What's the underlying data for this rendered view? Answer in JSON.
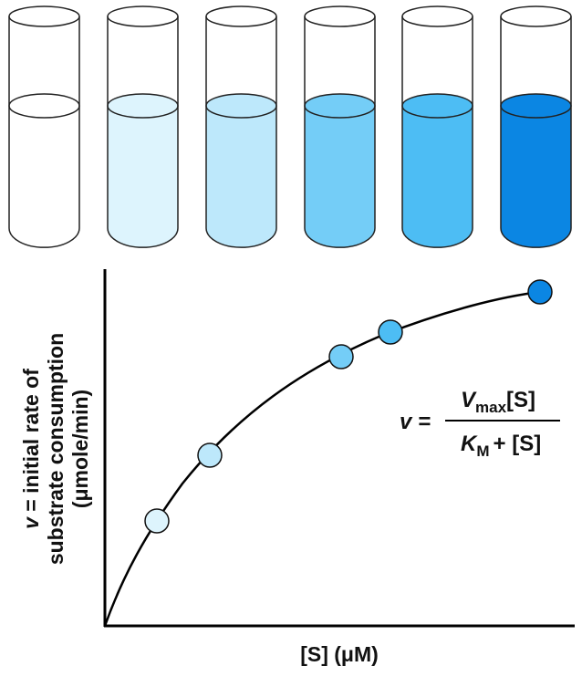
{
  "tubes": [
    {
      "color": "#ffffff"
    },
    {
      "color": "#ddf4fd"
    },
    {
      "color": "#bde8fb"
    },
    {
      "color": "#74cdf7"
    },
    {
      "color": "#4dbdf4"
    },
    {
      "color": "#0b86e3"
    }
  ],
  "graph": {
    "y_label": {
      "variable": "v",
      "lines": [
        "= initial rate of",
        "substrate consumption",
        "(μmole/min)"
      ]
    },
    "x_label": "[S] (μM)",
    "equation": {
      "lhs": "v =",
      "numerator": {
        "symbol": "V",
        "subscript": "max",
        "rest": "[S]"
      },
      "denominator": {
        "symbol": "K",
        "subscript": "M",
        "rest": "+ [S]"
      }
    }
  }
}
